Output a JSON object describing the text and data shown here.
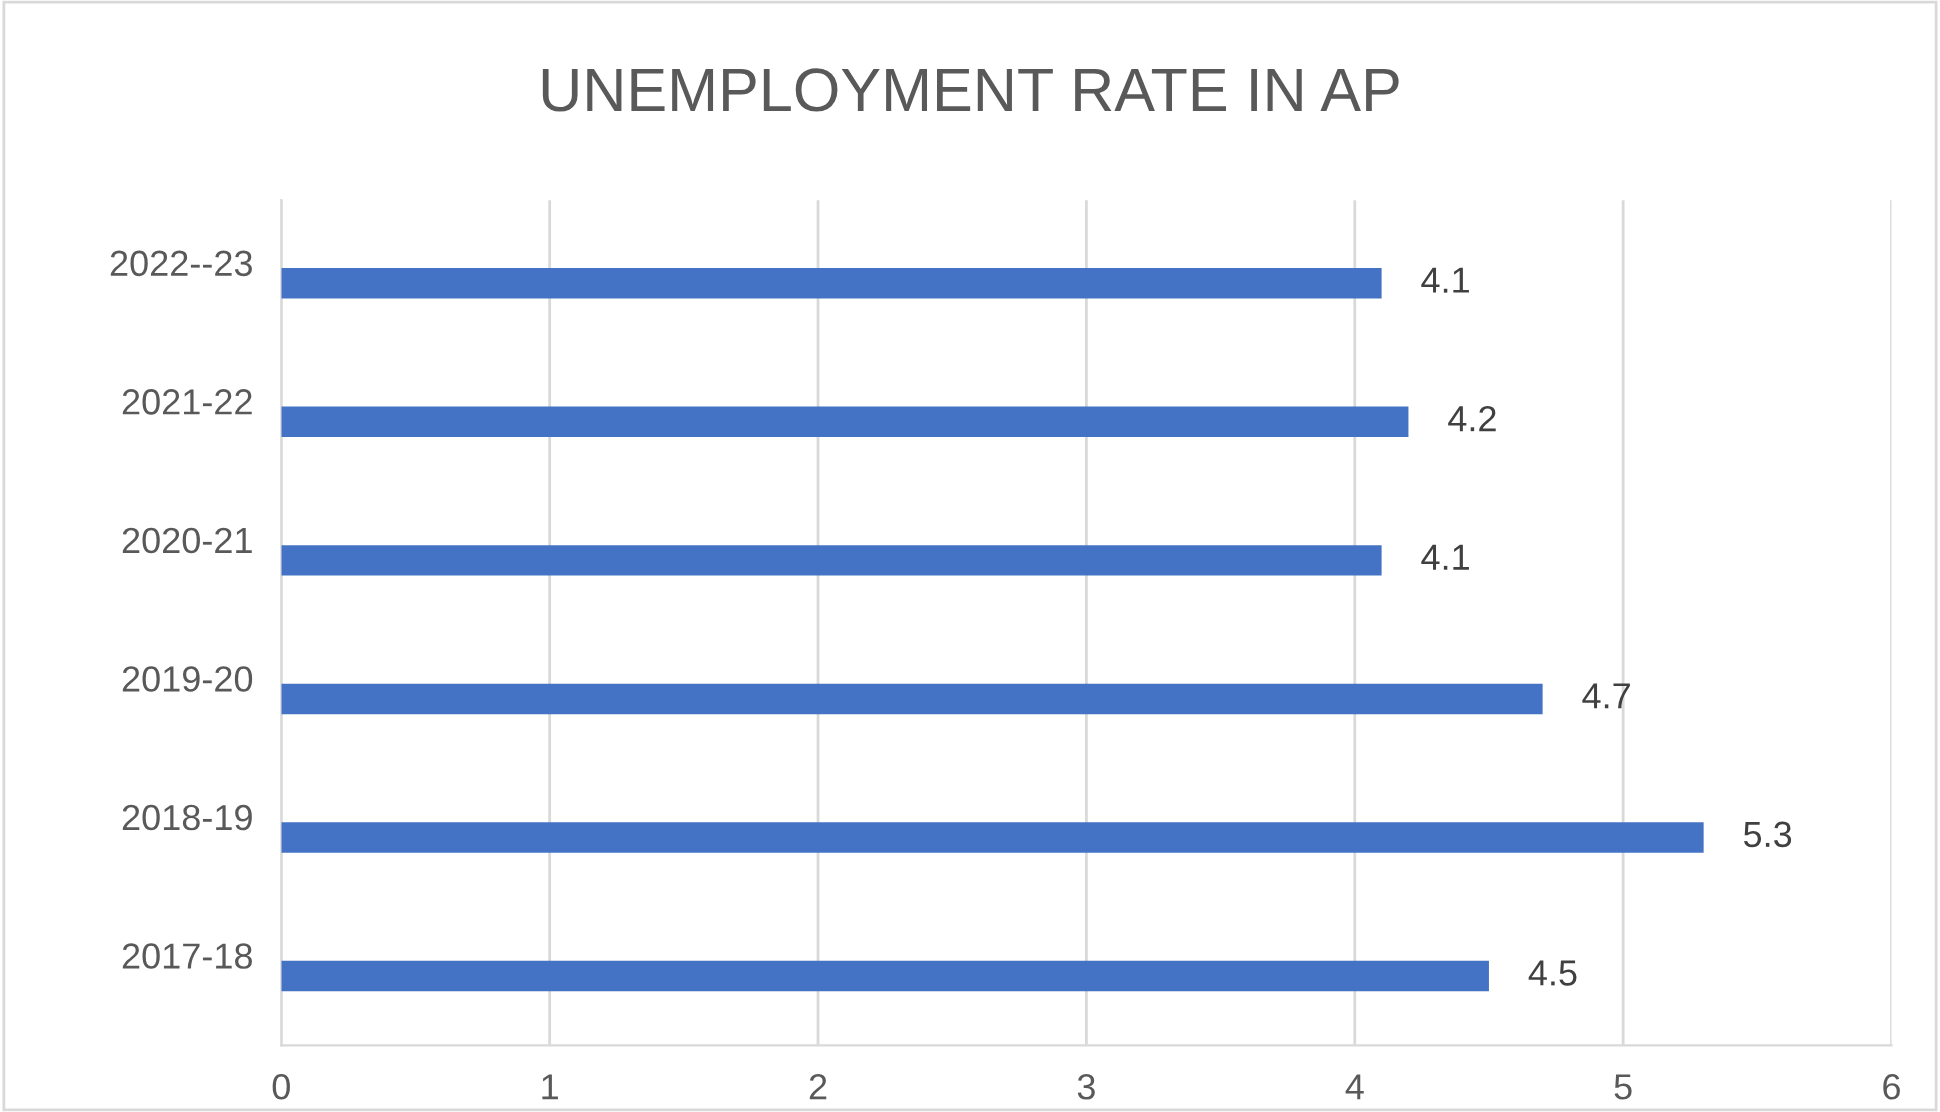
{
  "chart_data": {
    "type": "bar",
    "orientation": "horizontal",
    "title": "UNEMPLOYMENT RATE IN AP",
    "categories": [
      "2022--23",
      "2021-22",
      "2020-21",
      "2019-20",
      "2018-19",
      "2017-18"
    ],
    "values": [
      4.1,
      4.2,
      4.1,
      4.7,
      5.3,
      4.5
    ],
    "color": "#4472c4",
    "xlim": [
      0,
      6
    ],
    "xticks": [
      0,
      1,
      2,
      3,
      4,
      5,
      6
    ],
    "grid": "x",
    "data_labels": true
  }
}
